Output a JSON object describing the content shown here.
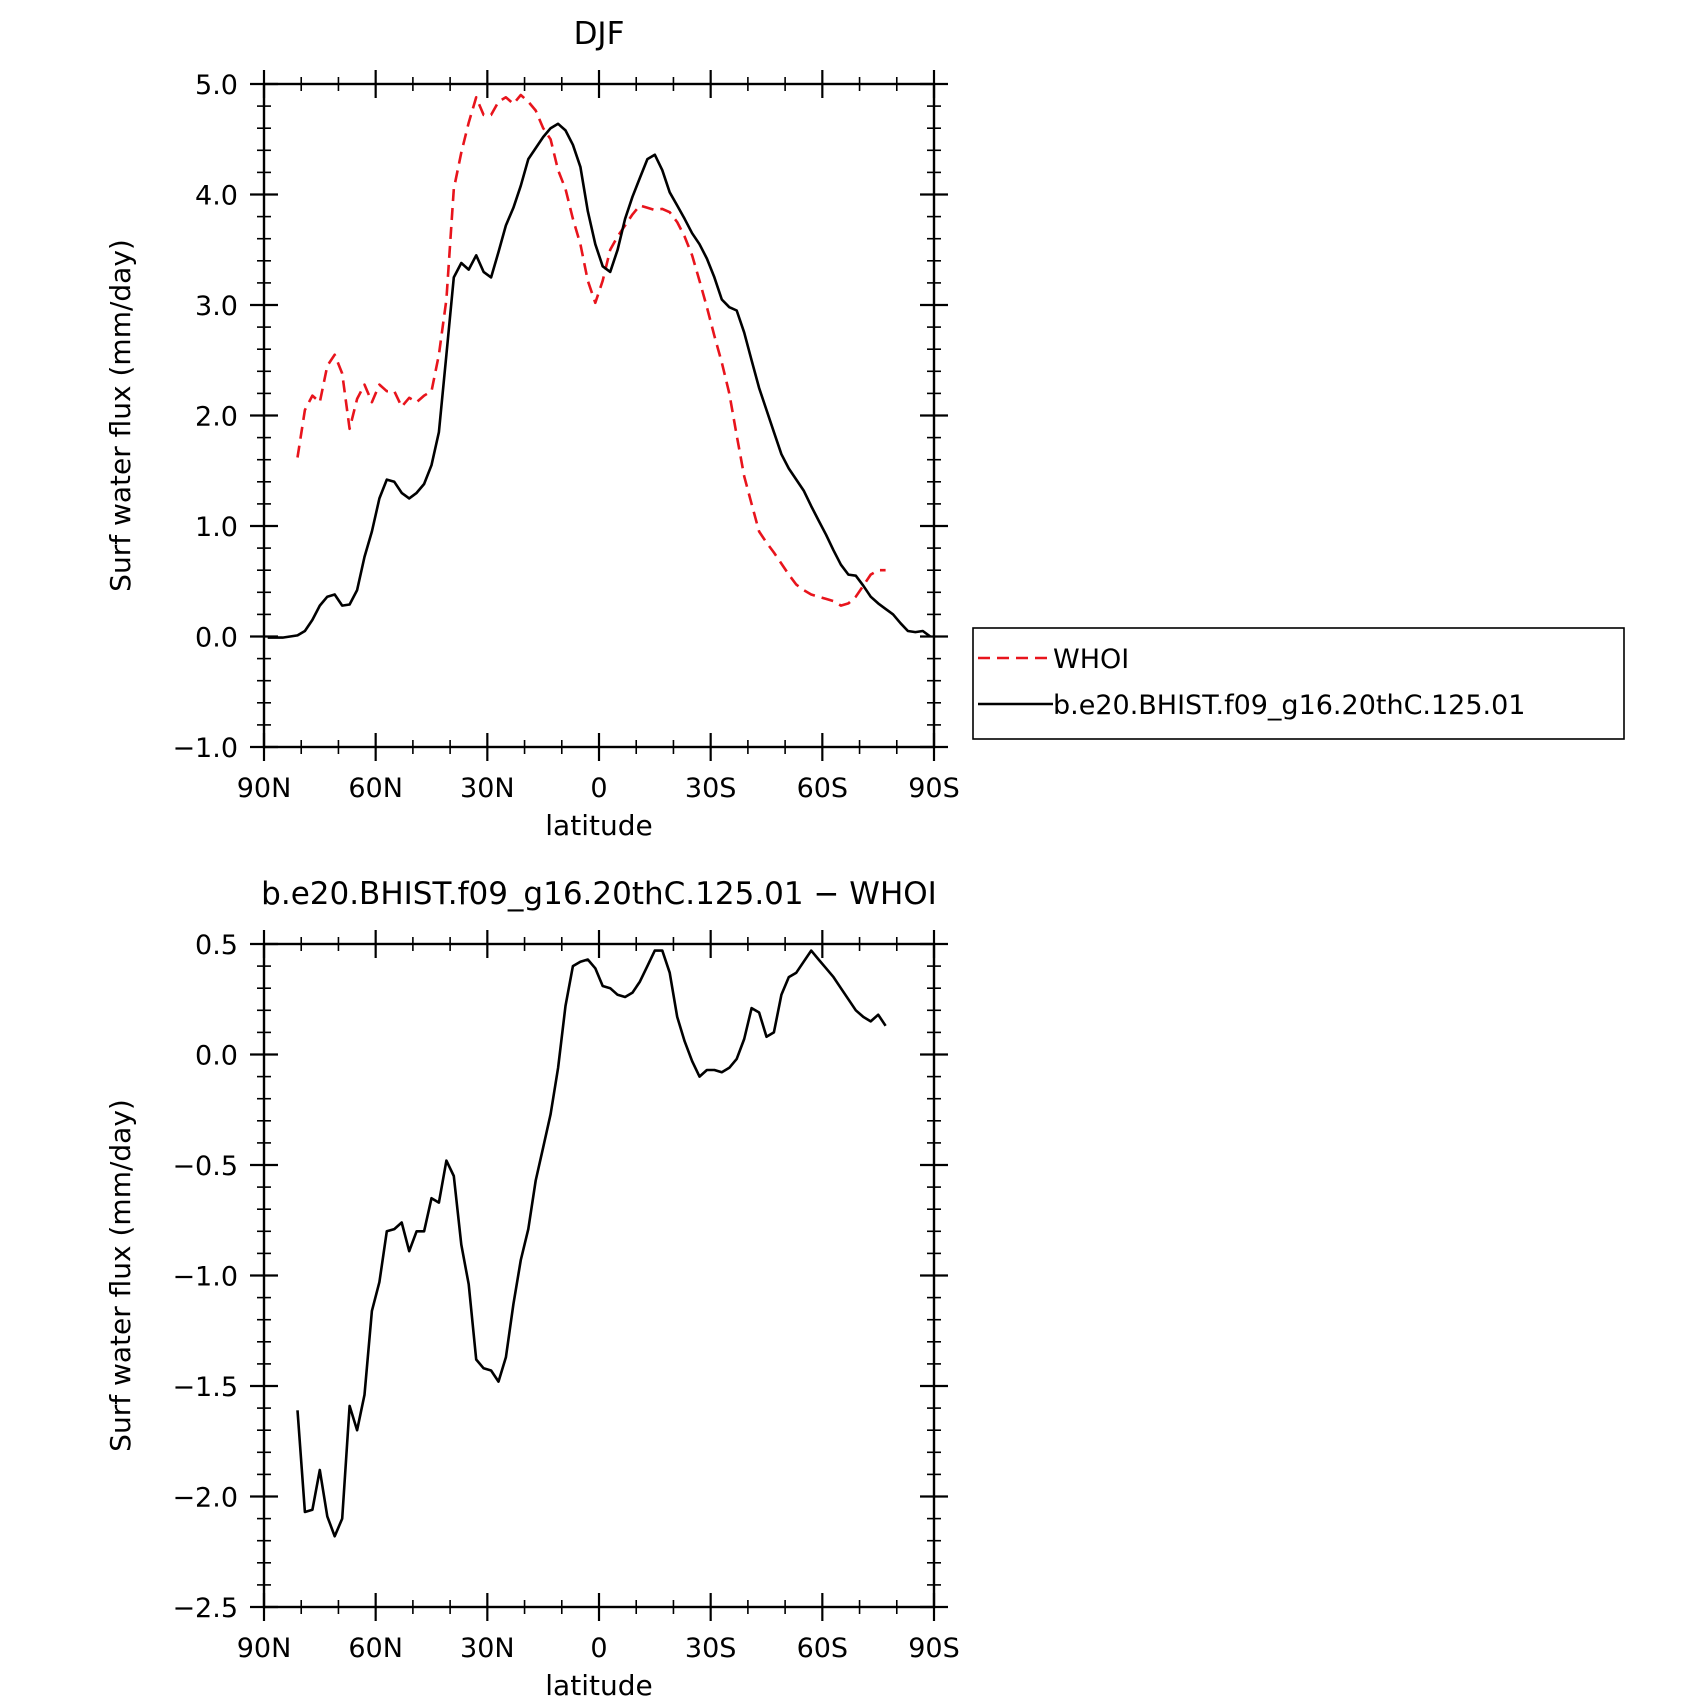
{
  "chart_data": [
    {
      "type": "line",
      "title": "DJF",
      "xlabel": "latitude",
      "ylabel": "Surf water flux (mm/day)",
      "xlim": [
        90,
        -90
      ],
      "ylim": [
        -1.0,
        5.0
      ],
      "xticks": [
        90,
        60,
        30,
        0,
        -30,
        -60,
        -90
      ],
      "xtick_labels": [
        "90N",
        "60N",
        "30N",
        "0",
        "30S",
        "60S",
        "90S"
      ],
      "yticks": [
        -1.0,
        0.0,
        1.0,
        2.0,
        3.0,
        4.0,
        5.0
      ],
      "ytick_labels": [
        "−1.0",
        "0.0",
        "1.0",
        "2.0",
        "3.0",
        "4.0",
        "5.0"
      ],
      "legend": "right",
      "series": [
        {
          "name": "WHOI",
          "color": "#e8141c",
          "style": "dashed",
          "x": [
            81,
            79,
            77,
            75,
            73,
            71,
            69,
            67,
            65,
            63,
            61,
            59,
            57,
            55,
            53,
            51,
            49,
            47,
            45,
            43,
            41,
            39,
            37,
            35,
            33,
            31,
            29,
            27,
            25,
            23,
            21,
            19,
            17,
            15,
            13,
            11,
            9,
            7,
            5,
            3,
            1,
            -1,
            -3,
            -5,
            -7,
            -9,
            -11,
            -13,
            -15,
            -17,
            -19,
            -21,
            -23,
            -25,
            -27,
            -29,
            -31,
            -33,
            -35,
            -37,
            -39,
            -41,
            -43,
            -45,
            -47,
            -49,
            -51,
            -53,
            -55,
            -57,
            -59,
            -61,
            -63,
            -65,
            -67,
            -69,
            -71,
            -73,
            -75,
            -77
          ],
          "values": [
            1.62,
            2.05,
            2.18,
            2.12,
            2.45,
            2.55,
            2.38,
            1.88,
            2.15,
            2.28,
            2.12,
            2.28,
            2.22,
            2.22,
            2.08,
            2.16,
            2.12,
            2.18,
            2.22,
            2.55,
            3.05,
            4.05,
            4.38,
            4.65,
            4.88,
            4.72,
            4.72,
            4.84,
            4.88,
            4.82,
            4.9,
            4.84,
            4.76,
            4.6,
            4.5,
            4.22,
            4.05,
            3.78,
            3.55,
            3.22,
            3.02,
            3.22,
            3.5,
            3.62,
            3.72,
            3.82,
            3.9,
            3.88,
            3.86,
            3.87,
            3.84,
            3.75,
            3.62,
            3.45,
            3.22,
            2.98,
            2.72,
            2.48,
            2.2,
            1.82,
            1.45,
            1.2,
            0.95,
            0.85,
            0.76,
            0.66,
            0.56,
            0.47,
            0.42,
            0.38,
            0.36,
            0.34,
            0.32,
            0.28,
            0.3,
            0.36,
            0.46,
            0.56,
            0.6,
            0.6
          ]
        },
        {
          "name": "b.e20.BHIST.f09_g16.20thC.125.01",
          "color": "#000000",
          "style": "solid",
          "x": [
            89,
            87,
            85,
            83,
            81,
            79,
            77,
            75,
            73,
            71,
            69,
            67,
            65,
            63,
            61,
            59,
            57,
            55,
            53,
            51,
            49,
            47,
            45,
            43,
            41,
            39,
            37,
            35,
            33,
            31,
            29,
            27,
            25,
            23,
            21,
            19,
            17,
            15,
            13,
            11,
            9,
            7,
            5,
            3,
            1,
            -1,
            -3,
            -5,
            -7,
            -9,
            -11,
            -13,
            -15,
            -17,
            -19,
            -21,
            -23,
            -25,
            -27,
            -29,
            -31,
            -33,
            -35,
            -37,
            -39,
            -41,
            -43,
            -45,
            -47,
            -49,
            -51,
            -53,
            -55,
            -57,
            -59,
            -61,
            -63,
            -65,
            -67,
            -69,
            -71,
            -73,
            -75,
            -77,
            -79,
            -81,
            -83,
            -85,
            -87,
            -89
          ],
          "values": [
            -0.01,
            -0.01,
            -0.01,
            0.0,
            0.01,
            0.05,
            0.15,
            0.28,
            0.36,
            0.38,
            0.28,
            0.29,
            0.42,
            0.72,
            0.95,
            1.25,
            1.42,
            1.4,
            1.3,
            1.25,
            1.3,
            1.38,
            1.55,
            1.85,
            2.55,
            3.25,
            3.38,
            3.32,
            3.45,
            3.3,
            3.25,
            3.48,
            3.72,
            3.88,
            4.08,
            4.32,
            4.42,
            4.52,
            4.6,
            4.64,
            4.58,
            4.45,
            4.25,
            3.85,
            3.55,
            3.35,
            3.3,
            3.5,
            3.78,
            3.98,
            4.15,
            4.32,
            4.36,
            4.22,
            4.02,
            3.9,
            3.78,
            3.65,
            3.55,
            3.42,
            3.25,
            3.05,
            2.98,
            2.95,
            2.75,
            2.5,
            2.25,
            2.05,
            1.85,
            1.65,
            1.52,
            1.42,
            1.32,
            1.18,
            1.05,
            0.92,
            0.78,
            0.65,
            0.56,
            0.55,
            0.46,
            0.36,
            0.3,
            0.25,
            0.2,
            0.12,
            0.05,
            0.04,
            0.05,
            0.0
          ]
        }
      ]
    },
    {
      "type": "line",
      "title": "b.e20.BHIST.f09_g16.20thC.125.01 − WHOI",
      "xlabel": "latitude",
      "ylabel": "Surf water flux (mm/day)",
      "xlim": [
        90,
        -90
      ],
      "ylim": [
        -2.5,
        0.5
      ],
      "xticks": [
        90,
        60,
        30,
        0,
        -30,
        -60,
        -90
      ],
      "xtick_labels": [
        "90N",
        "60N",
        "30N",
        "0",
        "30S",
        "60S",
        "90S"
      ],
      "yticks": [
        -2.5,
        -2.0,
        -1.5,
        -1.0,
        -0.5,
        0.0,
        0.5
      ],
      "ytick_labels": [
        "−2.5",
        "−2.0",
        "−1.5",
        "−1.0",
        "−0.5",
        "0.0",
        "0.5"
      ],
      "series": [
        {
          "color": "#000000",
          "style": "solid",
          "x": [
            81,
            79,
            77,
            75,
            73,
            71,
            69,
            67,
            65,
            63,
            61,
            59,
            57,
            55,
            53,
            51,
            49,
            47,
            45,
            43,
            41,
            39,
            37,
            35,
            33,
            31,
            29,
            27,
            25,
            23,
            21,
            19,
            17,
            15,
            13,
            11,
            9,
            7,
            5,
            3,
            1,
            -1,
            -3,
            -5,
            -7,
            -9,
            -11,
            -13,
            -15,
            -17,
            -19,
            -21,
            -23,
            -25,
            -27,
            -29,
            -31,
            -33,
            -35,
            -37,
            -39,
            -41,
            -43,
            -45,
            -47,
            -49,
            -51,
            -53,
            -55,
            -57,
            -59,
            -61,
            -63,
            -65,
            -67,
            -69,
            -71,
            -73,
            -75,
            -77
          ],
          "values": [
            -1.61,
            -2.07,
            -2.06,
            -1.88,
            -2.09,
            -2.18,
            -2.1,
            -1.59,
            -1.7,
            -1.54,
            -1.16,
            -1.03,
            -0.8,
            -0.79,
            -0.76,
            -0.89,
            -0.8,
            -0.8,
            -0.65,
            -0.67,
            -0.48,
            -0.55,
            -0.86,
            -1.04,
            -1.38,
            -1.42,
            -1.43,
            -1.48,
            -1.37,
            -1.13,
            -0.93,
            -0.79,
            -0.57,
            -0.42,
            -0.27,
            -0.06,
            0.22,
            0.4,
            0.42,
            0.43,
            0.39,
            0.31,
            0.3,
            0.27,
            0.26,
            0.28,
            0.33,
            0.4,
            0.47,
            0.47,
            0.37,
            0.17,
            0.06,
            -0.03,
            -0.1,
            -0.07,
            -0.07,
            -0.08,
            -0.06,
            -0.02,
            0.07,
            0.21,
            0.19,
            0.08,
            0.1,
            0.27,
            0.35,
            0.37,
            0.42,
            0.47,
            0.43,
            0.39,
            0.35,
            0.3,
            0.25,
            0.2,
            0.17,
            0.15,
            0.18,
            0.13
          ]
        }
      ]
    }
  ]
}
